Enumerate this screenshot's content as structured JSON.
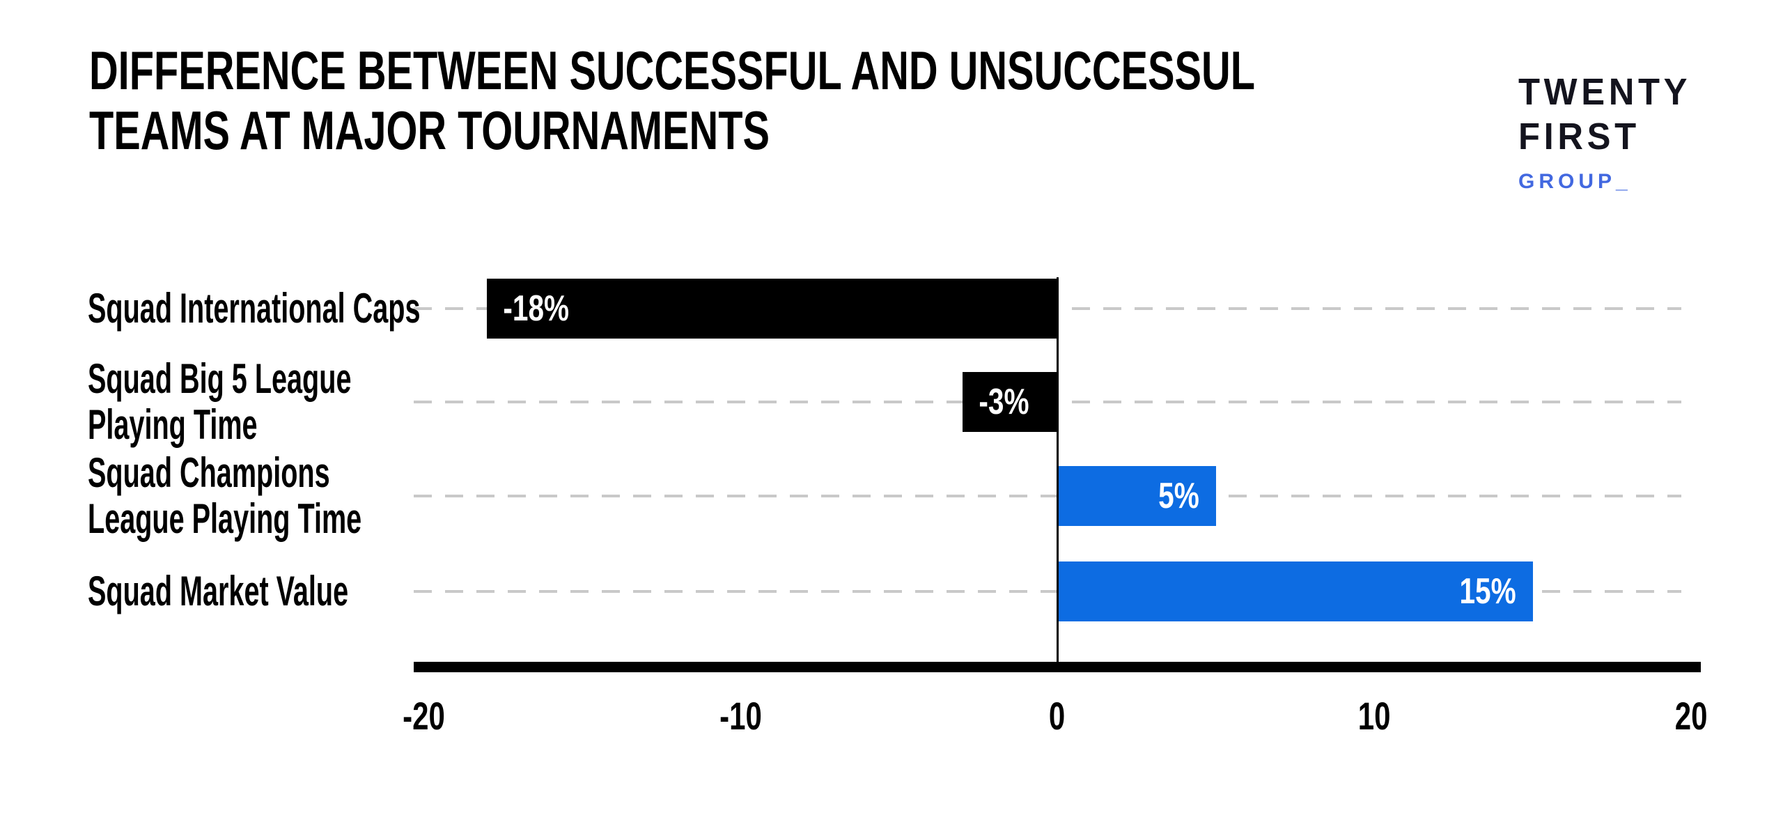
{
  "header": {
    "title": "DIFFERENCE BETWEEN SUCCESSFUL AND UNSUCCESSUL\nTEAMS AT MAJOR TOURNAMENTS"
  },
  "logo": {
    "line1": "TWENTY",
    "line2": "FIRST",
    "line3": "GROUP_"
  },
  "colors": {
    "bar_negative": "#000000",
    "bar_positive": "#0d6ce2",
    "logo_accent": "#4268e0",
    "logo_dark": "#14141e",
    "gridline": "#c9c9c9",
    "axis": "#000000",
    "value_label": "#ffffff"
  },
  "chart_data": {
    "type": "bar",
    "orientation": "horizontal",
    "title": "DIFFERENCE BETWEEN SUCCESSFUL AND UNSUCCESSUL TEAMS AT MAJOR TOURNAMENTS",
    "categories": [
      "Squad International Caps",
      "Squad Big 5 League\nPlaying Time",
      "Squad Champions\nLeague Playing Time",
      "Squad Market Value"
    ],
    "values": [
      -18,
      -3,
      5,
      15
    ],
    "value_labels": [
      "-18%",
      "-3%",
      "5%",
      "15%"
    ],
    "series_colors": [
      "#000000",
      "#000000",
      "#0d6ce2",
      "#0d6ce2"
    ],
    "units": "percent",
    "xlim": [
      -20,
      20
    ],
    "x_ticks": [
      -20,
      -10,
      0,
      10,
      20
    ],
    "x_tick_labels": [
      "-20",
      "-10",
      "0",
      "10",
      "20"
    ],
    "grid": "horizontal-dashed-per-category",
    "legend": "none"
  }
}
